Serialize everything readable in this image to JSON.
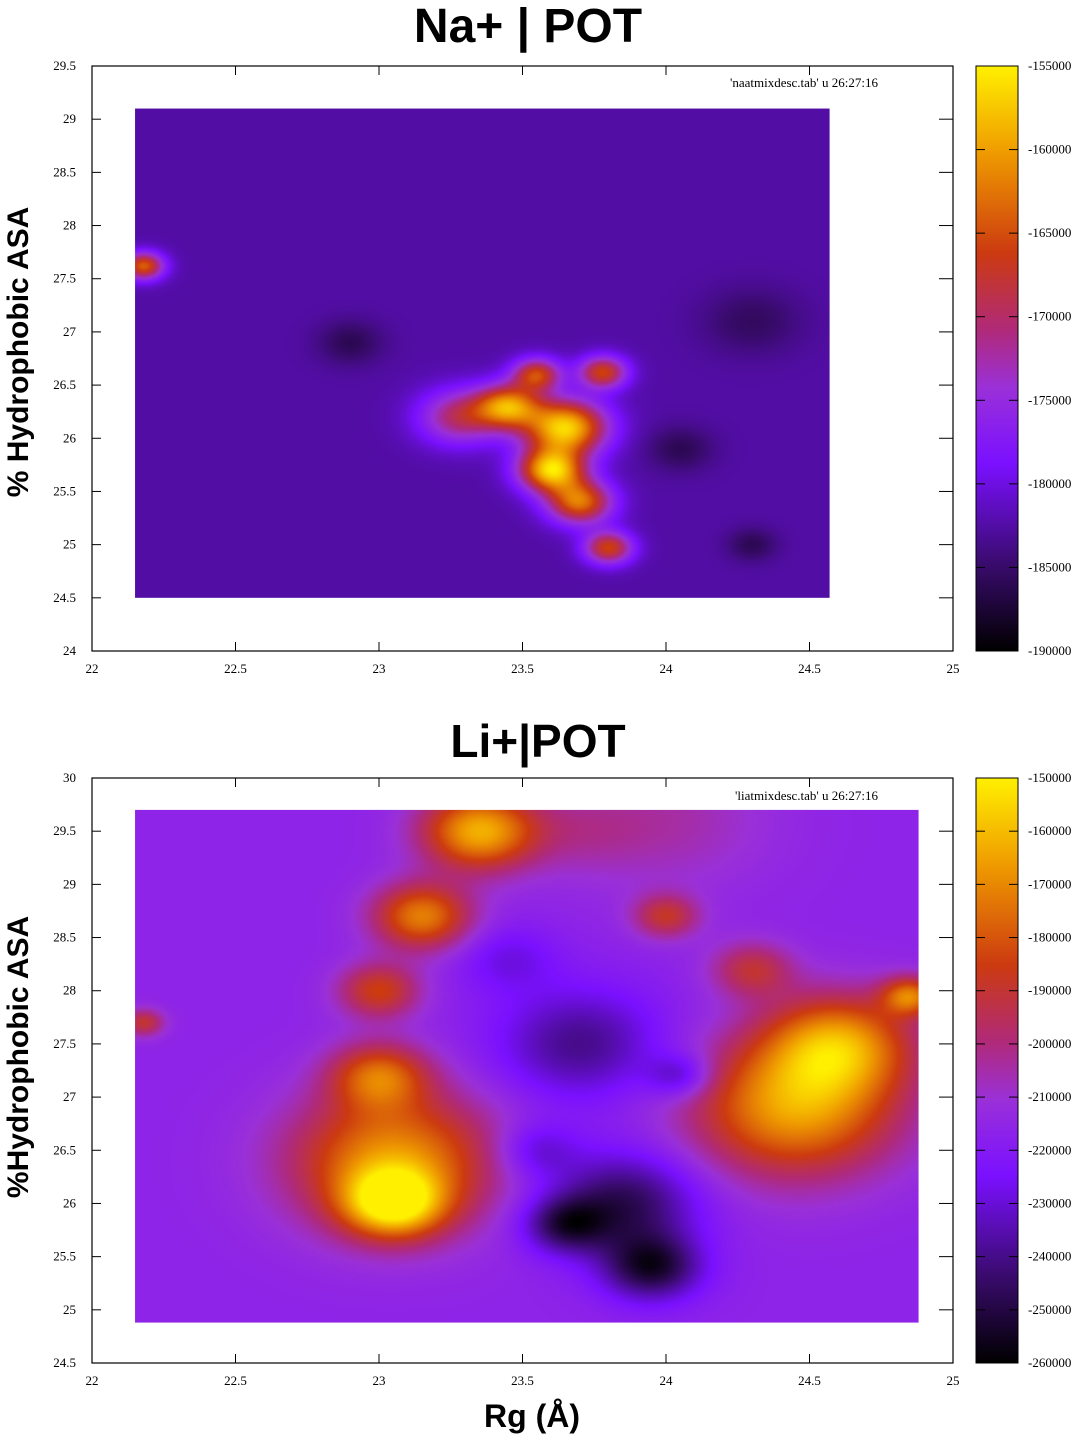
{
  "chart_data": [
    {
      "type": "heatmap",
      "title": "Na+ | POT",
      "ylabel": "% Hydrophobic ASA",
      "xlabel": "",
      "annotation": "'naatmixdesc.tab' u 26:27:16",
      "xlim": [
        22,
        25
      ],
      "ylim": [
        24,
        29.5
      ],
      "x_ticks": [
        "22",
        "22.5",
        "23",
        "23.5",
        "24",
        "24.5",
        "25"
      ],
      "y_ticks": [
        "24",
        "24.5",
        "25",
        "25.5",
        "26",
        "26.5",
        "27",
        "27.5",
        "28",
        "28.5",
        "29",
        "29.5"
      ],
      "data_extent": {
        "x": [
          22.15,
          24.57
        ],
        "y": [
          24.5,
          29.1
        ]
      },
      "colorbar": {
        "min": -190000,
        "max": -155000,
        "ticks": [
          "-155000",
          "-160000",
          "-165000",
          "-170000",
          "-175000",
          "-180000",
          "-185000",
          "-190000"
        ]
      },
      "background_value": -182500,
      "features": [
        {
          "x": 22.18,
          "y": 27.62,
          "value": -164000,
          "spread": 0.05
        },
        {
          "x": 23.28,
          "y": 26.2,
          "value": -170000,
          "spread": 0.1
        },
        {
          "x": 23.45,
          "y": 26.3,
          "value": -162000,
          "spread": 0.08
        },
        {
          "x": 23.55,
          "y": 26.6,
          "value": -166000,
          "spread": 0.06
        },
        {
          "x": 23.78,
          "y": 26.62,
          "value": -166000,
          "spread": 0.06
        },
        {
          "x": 23.65,
          "y": 26.1,
          "value": -157000,
          "spread": 0.1
        },
        {
          "x": 23.6,
          "y": 25.7,
          "value": -158000,
          "spread": 0.08
        },
        {
          "x": 23.7,
          "y": 25.4,
          "value": -163000,
          "spread": 0.08
        },
        {
          "x": 23.8,
          "y": 24.97,
          "value": -166000,
          "spread": 0.06
        },
        {
          "x": 22.9,
          "y": 26.9,
          "value": -186000,
          "spread": 0.08
        },
        {
          "x": 24.05,
          "y": 25.9,
          "value": -186000,
          "spread": 0.08
        },
        {
          "x": 24.3,
          "y": 25.0,
          "value": -186000,
          "spread": 0.06
        },
        {
          "x": 24.3,
          "y": 27.1,
          "value": -185500,
          "spread": 0.12
        }
      ]
    },
    {
      "type": "heatmap",
      "title": "Li+|POT",
      "ylabel": "%Hydrophobic ASA",
      "xlabel": "Rg (Å)",
      "annotation": "'liatmixdesc.tab' u 26:27:16",
      "xlim": [
        22,
        25
      ],
      "ylim": [
        24.5,
        30
      ],
      "x_ticks": [
        "22",
        "22.5",
        "23",
        "23.5",
        "24",
        "24.5",
        "25"
      ],
      "y_ticks": [
        "24.5",
        "25",
        "25.5",
        "26",
        "26.5",
        "27",
        "27.5",
        "28",
        "28.5",
        "29",
        "29.5",
        "30"
      ],
      "data_extent": {
        "x": [
          22.15,
          24.88
        ],
        "y": [
          24.88,
          29.7
        ]
      },
      "colorbar": {
        "min": -260000,
        "max": -150000,
        "ticks": [
          "-150000",
          "-160000",
          "-170000",
          "-180000",
          "-190000",
          "-200000",
          "-210000",
          "-220000",
          "-230000",
          "-240000",
          "-250000",
          "-260000"
        ]
      },
      "background_value": -216000,
      "features": [
        {
          "x": 23.05,
          "y": 26.4,
          "value": -168000,
          "spread": 0.25
        },
        {
          "x": 23.05,
          "y": 26.0,
          "value": -162000,
          "spread": 0.12
        },
        {
          "x": 23.0,
          "y": 27.2,
          "value": -180000,
          "spread": 0.12
        },
        {
          "x": 23.15,
          "y": 28.7,
          "value": -172000,
          "spread": 0.12
        },
        {
          "x": 23.0,
          "y": 28.0,
          "value": -185000,
          "spread": 0.1
        },
        {
          "x": 23.35,
          "y": 29.5,
          "value": -163000,
          "spread": 0.14
        },
        {
          "x": 22.18,
          "y": 27.7,
          "value": -190000,
          "spread": 0.05
        },
        {
          "x": 24.45,
          "y": 26.9,
          "value": -166000,
          "spread": 0.25
        },
        {
          "x": 24.6,
          "y": 27.5,
          "value": -172000,
          "spread": 0.18
        },
        {
          "x": 24.85,
          "y": 27.95,
          "value": -176000,
          "spread": 0.07
        },
        {
          "x": 24.0,
          "y": 28.7,
          "value": -190000,
          "spread": 0.08
        },
        {
          "x": 24.3,
          "y": 28.2,
          "value": -192000,
          "spread": 0.1
        },
        {
          "x": 23.7,
          "y": 27.5,
          "value": -240000,
          "spread": 0.2
        },
        {
          "x": 23.85,
          "y": 26.0,
          "value": -248000,
          "spread": 0.18
        },
        {
          "x": 23.95,
          "y": 25.4,
          "value": -252000,
          "spread": 0.12
        },
        {
          "x": 23.45,
          "y": 28.3,
          "value": -228000,
          "spread": 0.12
        },
        {
          "x": 24.05,
          "y": 27.2,
          "value": -236000,
          "spread": 0.08
        },
        {
          "x": 23.55,
          "y": 26.5,
          "value": -232000,
          "spread": 0.1
        },
        {
          "x": 23.65,
          "y": 25.8,
          "value": -244000,
          "spread": 0.1
        },
        {
          "x": 24.0,
          "y": 29.6,
          "value": -205000,
          "spread": 0.25
        },
        {
          "x": 23.7,
          "y": 29.5,
          "value": -208000,
          "spread": 0.15
        }
      ]
    }
  ]
}
